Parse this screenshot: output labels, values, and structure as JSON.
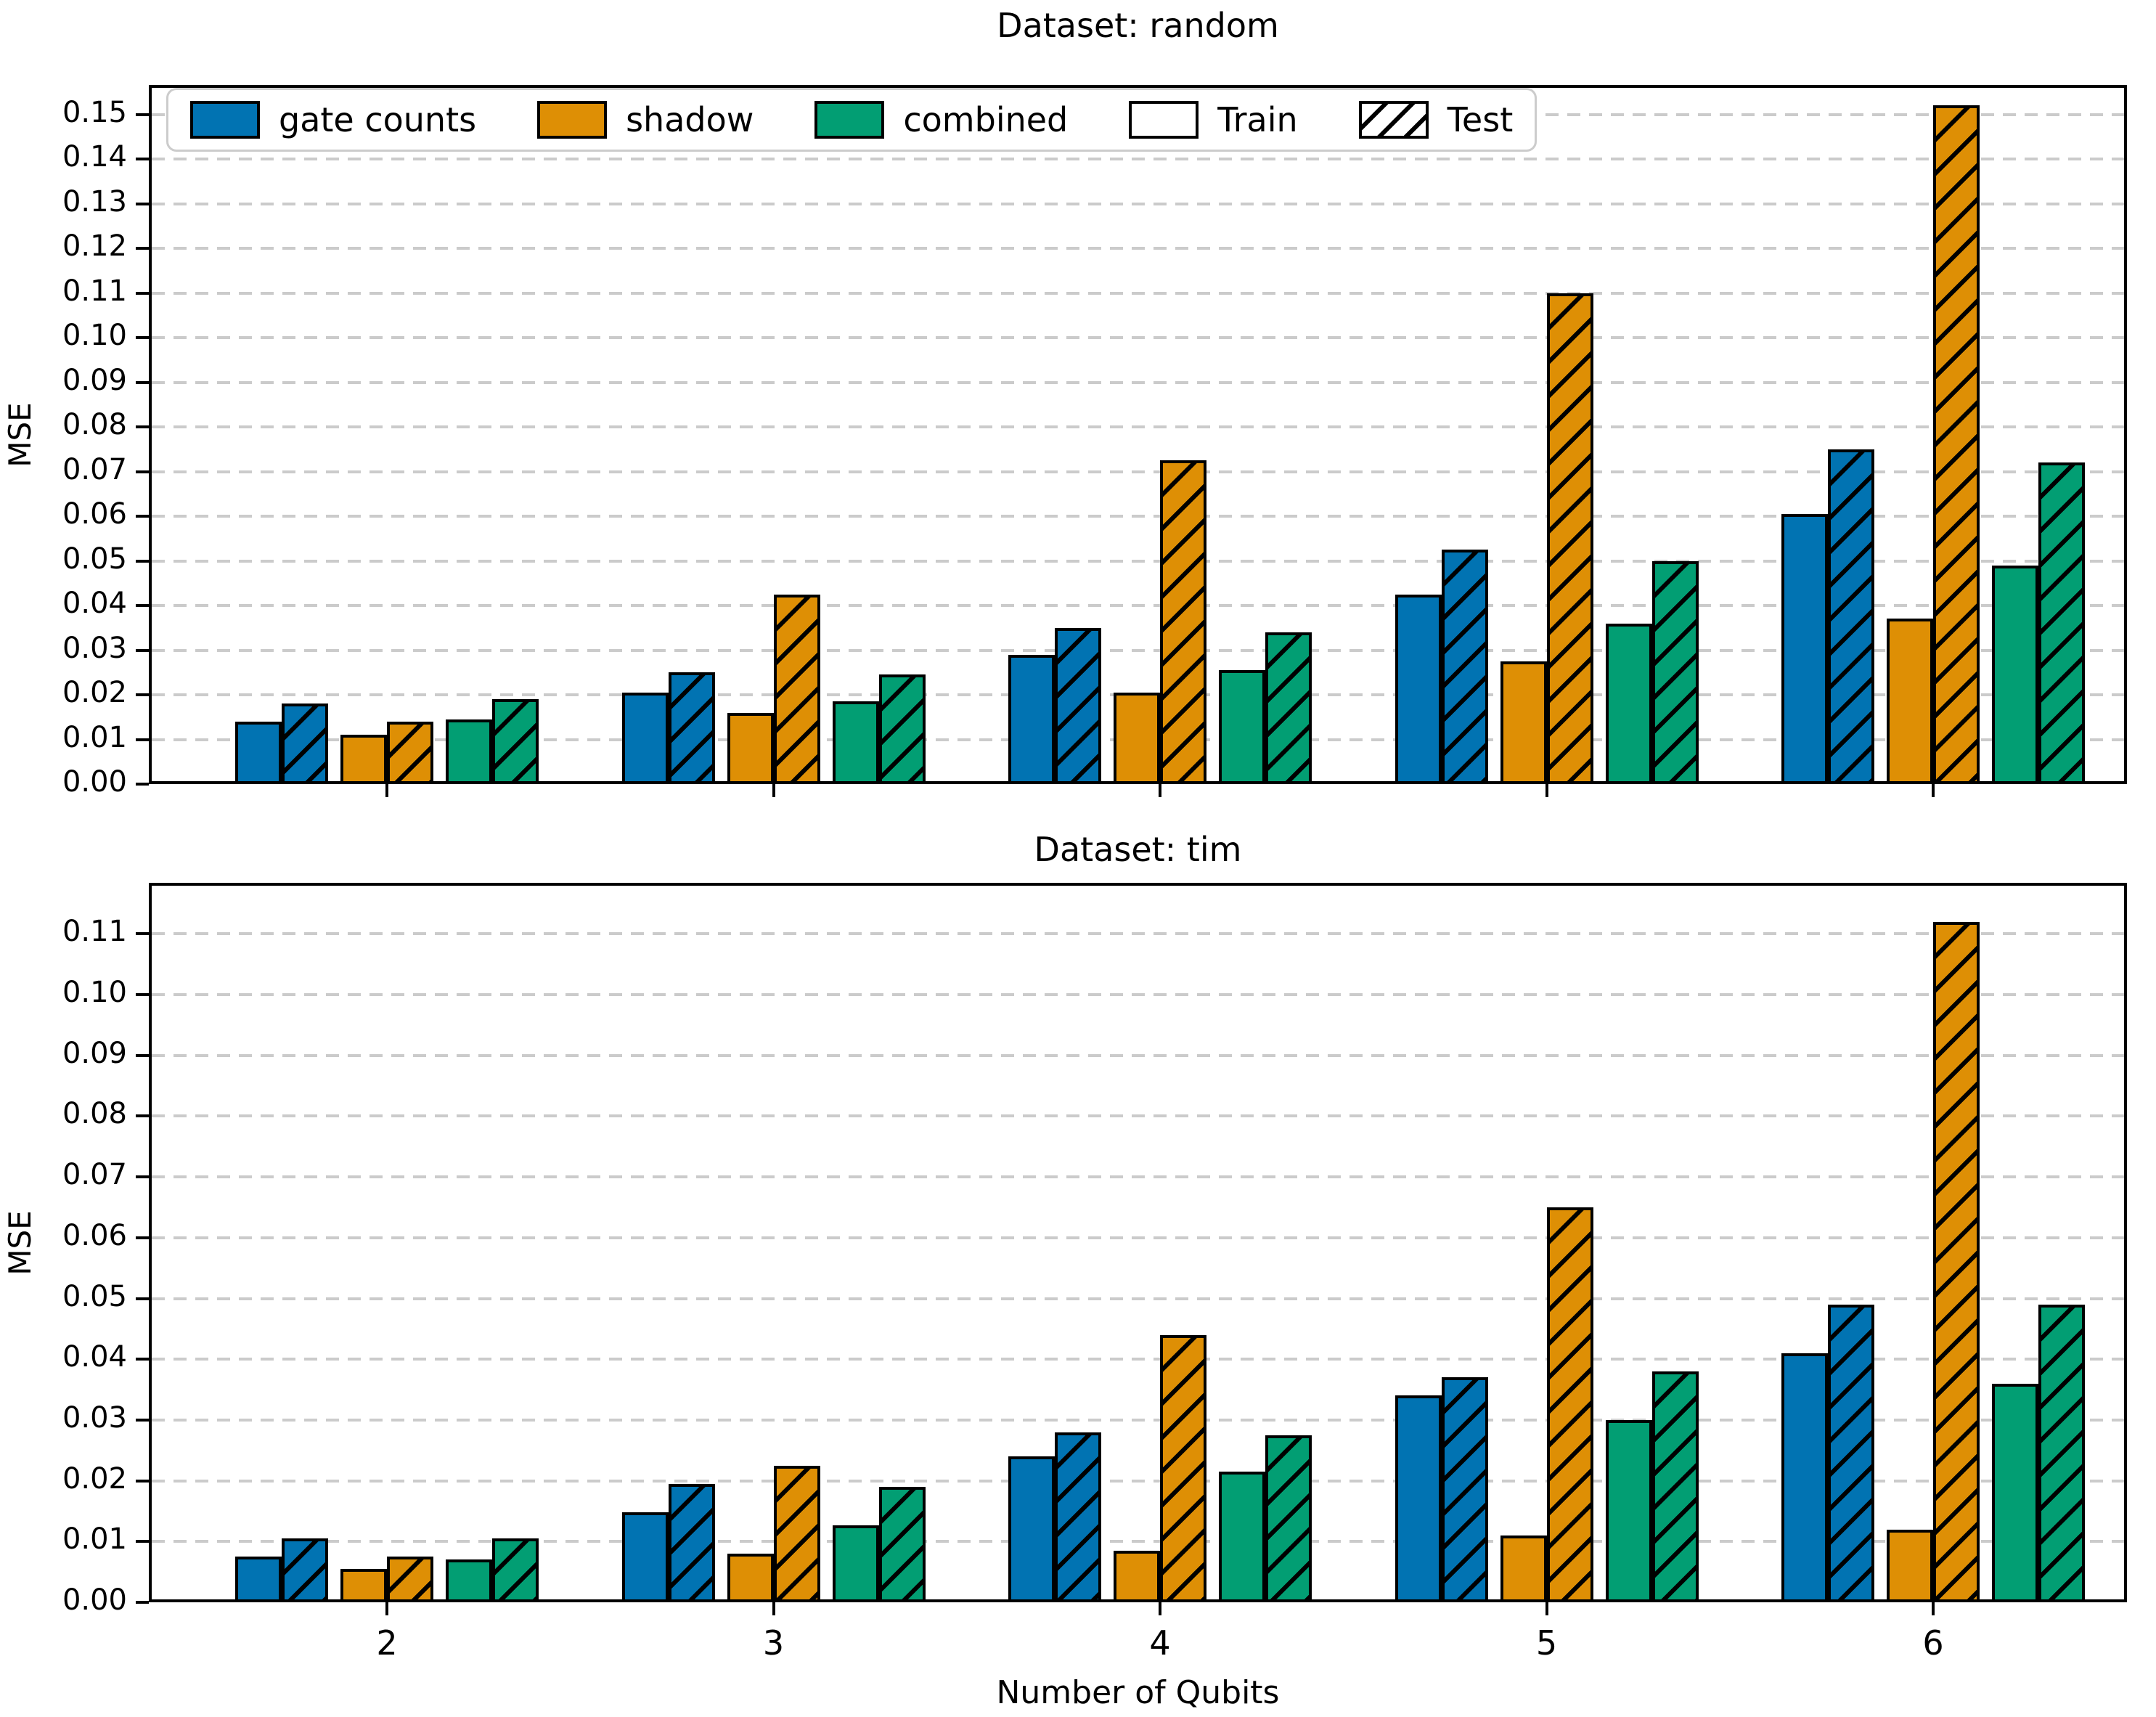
{
  "xlabel": "Number of Qubits",
  "categories": [
    "2",
    "3",
    "4",
    "5",
    "6"
  ],
  "colors": {
    "gate_counts": "#0173b2",
    "shadow": "#de8f05",
    "combined": "#029e73",
    "bar_edge": "#000000",
    "grid": "#cbcbcb"
  },
  "legend": {
    "items": [
      {
        "label": "gate counts",
        "kind": "color",
        "color": "#0173b2"
      },
      {
        "label": "shadow",
        "kind": "color",
        "color": "#de8f05"
      },
      {
        "label": "combined",
        "kind": "color",
        "color": "#029e73"
      },
      {
        "label": "Train",
        "kind": "solid-white"
      },
      {
        "label": "Test",
        "kind": "hatch"
      }
    ]
  },
  "chart_data": [
    {
      "type": "bar",
      "title": "Dataset: random",
      "ylabel": "MSE",
      "xlabel": "Number of Qubits",
      "categories": [
        2,
        3,
        4,
        5,
        6
      ],
      "ylim": [
        0,
        0.1566
      ],
      "ytick_labels": [
        "0.00",
        "0.01",
        "0.02",
        "0.03",
        "0.04",
        "0.05",
        "0.06",
        "0.07",
        "0.08",
        "0.09",
        "0.10",
        "0.11",
        "0.12",
        "0.13",
        "0.14",
        "0.15"
      ],
      "grid": "horizontal-dashed",
      "legend_position": "upper-left",
      "series": [
        {
          "name": "gate counts",
          "color": "#0173b2",
          "train": [
            0.014,
            0.0205,
            0.029,
            0.0425,
            0.0605
          ],
          "test": [
            0.018,
            0.025,
            0.035,
            0.0525,
            0.075
          ]
        },
        {
          "name": "shadow",
          "color": "#de8f05",
          "train": [
            0.011,
            0.016,
            0.0205,
            0.0275,
            0.037
          ],
          "test": [
            0.014,
            0.0425,
            0.0725,
            0.11,
            0.152
          ]
        },
        {
          "name": "combined",
          "color": "#029e73",
          "train": [
            0.0145,
            0.0185,
            0.0255,
            0.036,
            0.049
          ],
          "test": [
            0.019,
            0.0245,
            0.034,
            0.05,
            0.072
          ]
        }
      ]
    },
    {
      "type": "bar",
      "title": "Dataset: tim",
      "ylabel": "MSE",
      "xlabel": "Number of Qubits",
      "categories": [
        2,
        3,
        4,
        5,
        6
      ],
      "ylim": [
        0,
        0.1184
      ],
      "ytick_labels": [
        "0.00",
        "0.01",
        "0.02",
        "0.03",
        "0.04",
        "0.05",
        "0.06",
        "0.07",
        "0.08",
        "0.09",
        "0.10",
        "0.11"
      ],
      "grid": "horizontal-dashed",
      "series": [
        {
          "name": "gate counts",
          "color": "#0173b2",
          "train": [
            0.0075,
            0.0148,
            0.024,
            0.034,
            0.041
          ],
          "test": [
            0.0105,
            0.0195,
            0.028,
            0.037,
            0.049
          ]
        },
        {
          "name": "shadow",
          "color": "#de8f05",
          "train": [
            0.0055,
            0.008,
            0.0085,
            0.011,
            0.012
          ],
          "test": [
            0.0075,
            0.0225,
            0.044,
            0.065,
            0.112
          ]
        },
        {
          "name": "combined",
          "color": "#029e73",
          "train": [
            0.007,
            0.0127,
            0.0215,
            0.03,
            0.036
          ],
          "test": [
            0.0105,
            0.019,
            0.0275,
            0.038,
            0.049
          ]
        }
      ]
    }
  ]
}
